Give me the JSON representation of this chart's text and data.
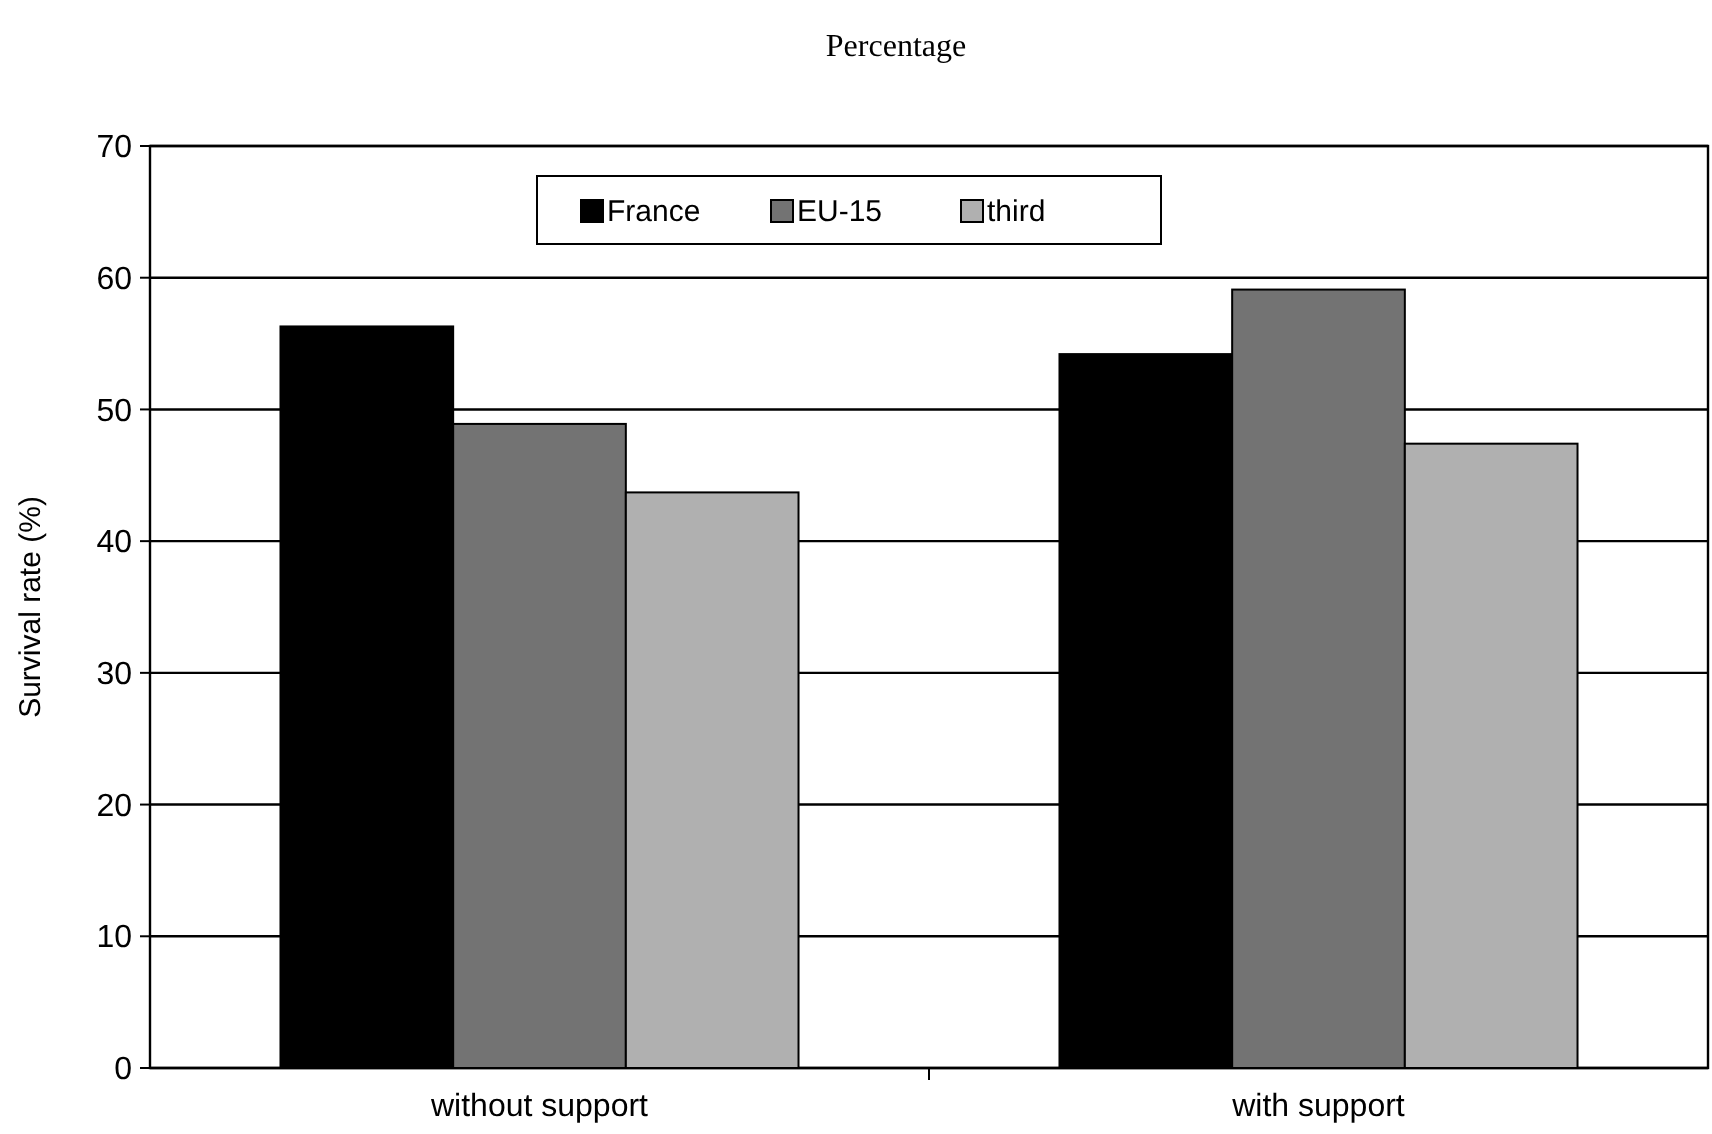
{
  "chart_data": {
    "type": "bar",
    "title": "Percentage",
    "ylabel": "Survival rate (%)",
    "categories": [
      "without support",
      "with support"
    ],
    "series": [
      {
        "name": "France",
        "color": "#000000",
        "values": [
          56.3,
          54.2
        ]
      },
      {
        "name": "EU-15",
        "color": "#737373",
        "values": [
          48.9,
          59.1
        ]
      },
      {
        "name": "third",
        "color": "#b0b0b0",
        "values": [
          43.7,
          47.4
        ]
      }
    ],
    "ylim": [
      0,
      70
    ],
    "yticks": [
      0,
      10,
      20,
      30,
      40,
      50,
      60,
      70
    ],
    "grid": "y",
    "legend": "top"
  }
}
